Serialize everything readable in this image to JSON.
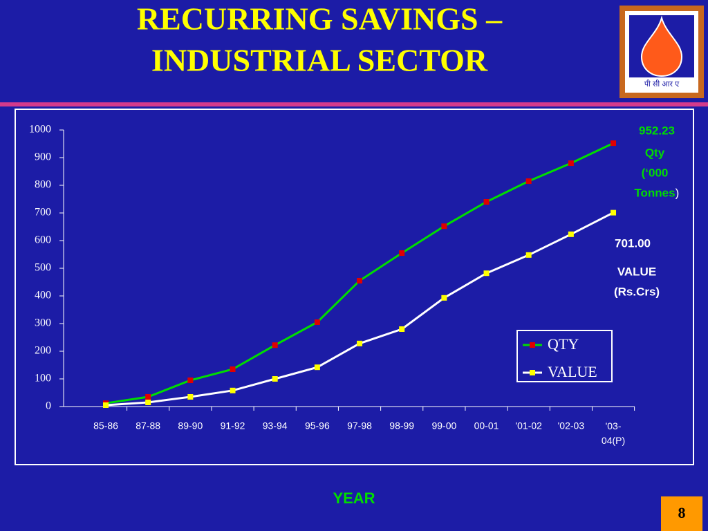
{
  "chart_data": {
    "type": "line",
    "title": [
      "RECURRING SAVINGS –",
      "INDUSTRIAL  SECTOR"
    ],
    "categories": [
      "85-86",
      "87-88",
      "89-90",
      "91-92",
      "93-94",
      "95-96",
      "97-98",
      "98-99",
      "99-00",
      "00-01",
      "'01-02",
      "'02-03",
      "'03-04(P)"
    ],
    "series": [
      {
        "name": "QTY",
        "color": "#00dd00",
        "marker_color": "#e00000",
        "values": [
          12,
          35,
          95,
          135,
          222,
          305,
          455,
          555,
          652,
          740,
          815,
          880,
          952.23
        ],
        "value_labels": [
          null,
          null,
          null,
          null,
          null,
          null,
          null,
          null,
          null,
          null,
          null,
          null,
          "952.23"
        ],
        "note": [
          "Qty",
          "(‘000",
          "Tonnes",
          ")"
        ]
      },
      {
        "name": "VALUE",
        "color": "#ffffff",
        "marker_color": "#ffff00",
        "values": [
          5,
          15,
          35,
          58,
          100,
          142,
          228,
          280,
          393,
          482,
          548,
          623,
          701.0
        ],
        "value_labels": [
          null,
          null,
          null,
          null,
          null,
          null,
          null,
          null,
          null,
          null,
          null,
          null,
          "701.00"
        ],
        "note": [
          "VALUE",
          "(Rs.Crs)"
        ]
      }
    ],
    "ylim": [
      0,
      1000
    ],
    "yticks": [
      0,
      100,
      200,
      300,
      400,
      500,
      600,
      700,
      800,
      900,
      1000
    ],
    "xlabel": "YEAR",
    "legend": "lower right",
    "grid": false
  },
  "logo_text": "पी सी आर ए",
  "page_number": "8"
}
